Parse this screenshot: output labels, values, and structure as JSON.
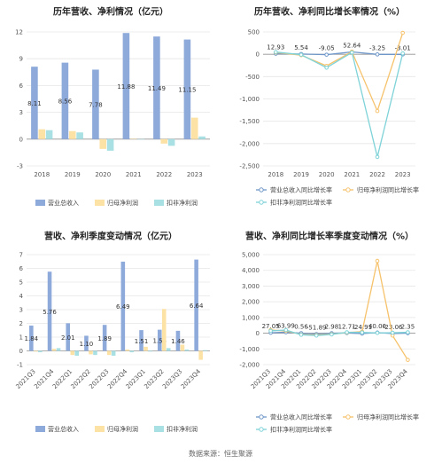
{
  "source_text": "数据来源：恒生聚源",
  "colors": {
    "revenue": "#8eaadb",
    "net_profit": "#fde2a6",
    "deducted_profit": "#a8e0e3",
    "grid": "#e6e6e6",
    "axis": "#999999"
  },
  "chart_data": [
    {
      "id": "annual",
      "type": "bar",
      "title": "历年营收、净利情况（亿元）",
      "categories": [
        "2018",
        "2019",
        "2020",
        "2021",
        "2022",
        "2023"
      ],
      "ylim": [
        -3,
        12
      ],
      "yticks": [
        -3,
        0,
        3,
        6,
        9,
        12
      ],
      "grid": true,
      "legend_position": "bottom",
      "series": [
        {
          "name": "营业总收入",
          "values": [
            8.11,
            8.56,
            7.78,
            11.88,
            11.49,
            11.15
          ],
          "labels": [
            "8.11",
            "8.56",
            "7.78",
            "11.88",
            "11.49",
            "11.15"
          ]
        },
        {
          "name": "归母净利润",
          "values": [
            1.1,
            0.9,
            -1.1,
            0.05,
            -0.5,
            2.4
          ]
        },
        {
          "name": "扣非净利润",
          "values": [
            1.0,
            0.75,
            -1.3,
            -0.05,
            -0.75,
            0.3
          ]
        }
      ]
    },
    {
      "id": "annual-growth",
      "type": "line",
      "title": "历年营收、净利同比增长率情况（%）",
      "categories": [
        "2018",
        "2019",
        "2020",
        "2021",
        "2022",
        "2023"
      ],
      "ylim": [
        -2500,
        500
      ],
      "yticks": [
        -2500,
        -2000,
        -1500,
        -1000,
        -500,
        0,
        500
      ],
      "ytick_labels": [
        "-2,500",
        "-2,000",
        "-1,500",
        "-1,000",
        "-500",
        "0",
        "500"
      ],
      "grid": true,
      "legend_position": "bottom",
      "series": [
        {
          "name": "营业总收入同比增长率",
          "values": [
            12.93,
            5.54,
            -9.05,
            52.64,
            -3.25,
            -3.01
          ],
          "labels": [
            "12.93",
            "5.54",
            "-9.05",
            "52.64",
            "-3.25",
            "-3.01"
          ]
        },
        {
          "name": "归母净利润同比增长率",
          "values": [
            40,
            -20,
            -260,
            60,
            -1270,
            480
          ]
        },
        {
          "name": "扣非净利润同比增长率",
          "values": [
            50,
            -10,
            -300,
            40,
            -2300,
            20
          ]
        }
      ]
    },
    {
      "id": "quarterly",
      "type": "bar",
      "title": "营收、净利季度变动情况（亿元）",
      "categories": [
        "2021Q3",
        "2021Q4",
        "2022Q1",
        "2022Q2",
        "2022Q3",
        "2022Q4",
        "2023Q1",
        "2023Q2",
        "2023Q3",
        "2023Q4"
      ],
      "ylim": [
        -1,
        7
      ],
      "yticks": [
        -1,
        0,
        1,
        2,
        3,
        4,
        5,
        6,
        7
      ],
      "grid": true,
      "legend_position": "bottom",
      "series": [
        {
          "name": "营业总收入",
          "values": [
            1.84,
            5.76,
            2.01,
            1.1,
            1.89,
            6.49,
            1.51,
            1.54,
            1.46,
            6.64
          ],
          "labels": [
            "1.84",
            "5.76",
            "2.01",
            "1.10",
            "1.89",
            "6.49",
            "1.51",
            "1.54",
            "1.46",
            "6.64"
          ]
        },
        {
          "name": "归母净利润",
          "values": [
            -0.05,
            0.15,
            -0.3,
            -0.25,
            -0.3,
            0.1,
            0.3,
            3.05,
            0.45,
            -0.65
          ]
        },
        {
          "name": "扣非净利润",
          "values": [
            -0.1,
            0.2,
            -0.35,
            -0.3,
            -0.35,
            -0.1,
            -0.05,
            0.2,
            0.1,
            0.05
          ]
        }
      ]
    },
    {
      "id": "quarterly-growth",
      "type": "line",
      "title": "营收、净利同比增长率季度变动情况（%）",
      "categories": [
        "2021Q3",
        "2021Q4",
        "2022Q1",
        "2022Q2",
        "2022Q3",
        "2022Q4",
        "2023Q1",
        "2023Q2",
        "2023Q3",
        "2023Q4"
      ],
      "ylim": [
        -2000,
        5000
      ],
      "yticks": [
        -2000,
        -1000,
        0,
        1000,
        2000,
        3000,
        4000,
        5000
      ],
      "ytick_labels": [
        "-2,000",
        "-1,000",
        "0",
        "1,000",
        "2,000",
        "3,000",
        "4,000",
        "5,000"
      ],
      "grid": true,
      "legend_position": "bottom",
      "series": [
        {
          "name": "营业总收入同比增长率",
          "values": [
            27.05,
            63.99,
            0.56,
            -51.89,
            2.98,
            12.71,
            -24.91,
            40.06,
            -23.06,
            2.35
          ],
          "labels": [
            "27.05",
            "63.99",
            "0.56",
            "-51.89",
            "2.98",
            "12.71",
            "-24.91",
            "40.06",
            "-23.06",
            "2.35"
          ]
        },
        {
          "name": "归母净利润同比增长率",
          "values": [
            200,
            150,
            -80,
            -120,
            -60,
            40,
            100,
            4600,
            -150,
            -1700
          ]
        },
        {
          "name": "扣非净利润同比增长率",
          "values": [
            150,
            200,
            -100,
            -150,
            -80,
            60,
            50,
            20,
            30,
            60
          ]
        }
      ]
    }
  ]
}
